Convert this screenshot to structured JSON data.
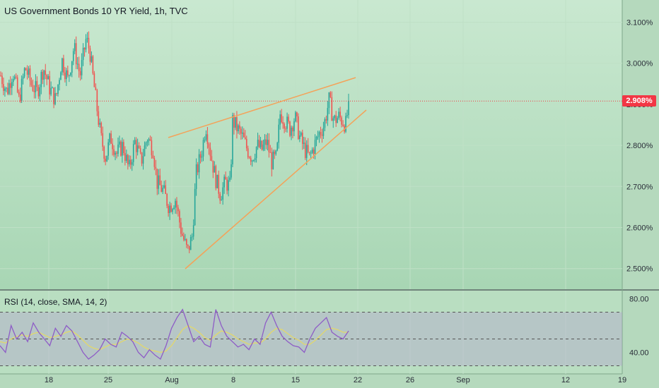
{
  "header": {
    "title": "US Government Bonds 10 YR Yield, 1h, TVC"
  },
  "rsi_header": {
    "title": "RSI (14, close, SMA, 14, 2)"
  },
  "price_tag": {
    "value": "2.908%",
    "color": "#f23645"
  },
  "colors": {
    "background_top": "#c9e8d0",
    "background_bottom": "#a8d6b4",
    "candle_up": "#26a69a",
    "candle_down": "#ef5350",
    "trendline": "#f4a259",
    "rsi_line": "#8e5cc6",
    "rsi_sma": "#e3d86a",
    "rsi_band": "#b29ad1"
  },
  "chart_data": [
    {
      "type": "candlestick",
      "title": "US Government Bonds 10 YR Yield, 1h, TVC",
      "y_unit": "%",
      "ylim": [
        2.46,
        3.13
      ],
      "y_ticks": [
        {
          "value": 3.1,
          "label": "3.100%"
        },
        {
          "value": 3.0,
          "label": "3.000%"
        },
        {
          "value": 2.9,
          "label": "2.900%"
        },
        {
          "value": 2.8,
          "label": "2.800%"
        },
        {
          "value": 2.7,
          "label": "2.700%"
        },
        {
          "value": 2.6,
          "label": "2.600%"
        },
        {
          "value": 2.5,
          "label": "2.500%"
        }
      ],
      "x_ticks": [
        "18",
        "25",
        "Aug",
        "8",
        "15",
        "22",
        "26",
        "Sep",
        "12",
        "19"
      ],
      "last_price": 2.908,
      "grid": true,
      "approx_path": [
        [
          0,
          2.97
        ],
        [
          5,
          2.93
        ],
        [
          10,
          2.98
        ],
        [
          15,
          2.91
        ],
        [
          20,
          2.99
        ],
        [
          25,
          2.95
        ],
        [
          30,
          2.93
        ],
        [
          35,
          2.99
        ],
        [
          40,
          2.94
        ],
        [
          45,
          2.91
        ],
        [
          50,
          3.01
        ],
        [
          55,
          2.96
        ],
        [
          60,
          3.04
        ],
        [
          65,
          2.97
        ],
        [
          70,
          3.06
        ],
        [
          73,
          3.03
        ],
        [
          75,
          2.98
        ],
        [
          78,
          2.91
        ],
        [
          82,
          2.82
        ],
        [
          86,
          2.77
        ],
        [
          90,
          2.82
        ],
        [
          95,
          2.78
        ],
        [
          100,
          2.8
        ],
        [
          105,
          2.74
        ],
        [
          110,
          2.81
        ],
        [
          115,
          2.76
        ],
        [
          120,
          2.82
        ],
        [
          125,
          2.79
        ],
        [
          128,
          2.71
        ],
        [
          133,
          2.69
        ],
        [
          138,
          2.65
        ],
        [
          143,
          2.67
        ],
        [
          148,
          2.59
        ],
        [
          153,
          2.54
        ],
        [
          157,
          2.58
        ],
        [
          160,
          2.73
        ],
        [
          165,
          2.79
        ],
        [
          168,
          2.85
        ],
        [
          172,
          2.78
        ],
        [
          176,
          2.72
        ],
        [
          180,
          2.68
        ],
        [
          184,
          2.71
        ],
        [
          188,
          2.7
        ],
        [
          190,
          2.86
        ],
        [
          194,
          2.84
        ],
        [
          198,
          2.82
        ],
        [
          202,
          2.79
        ],
        [
          206,
          2.77
        ],
        [
          210,
          2.8
        ],
        [
          214,
          2.79
        ],
        [
          218,
          2.81
        ],
        [
          222,
          2.76
        ],
        [
          226,
          2.77
        ],
        [
          229,
          2.88
        ],
        [
          233,
          2.86
        ],
        [
          237,
          2.84
        ],
        [
          241,
          2.87
        ],
        [
          245,
          2.82
        ],
        [
          249,
          2.79
        ],
        [
          253,
          2.77
        ],
        [
          257,
          2.8
        ],
        [
          261,
          2.83
        ],
        [
          265,
          2.85
        ],
        [
          269,
          2.91
        ],
        [
          273,
          2.86
        ],
        [
          277,
          2.87
        ],
        [
          280,
          2.86
        ],
        [
          283,
          2.85
        ],
        [
          285,
          2.908
        ]
      ]
    },
    {
      "type": "line",
      "title": "RSI (14, close, SMA, 14, 2)",
      "ylim": [
        25,
        85
      ],
      "y_ticks": [
        {
          "value": 80,
          "label": "80.00"
        },
        {
          "value": 40,
          "label": "40.00"
        }
      ],
      "levels": [
        70,
        50,
        30
      ],
      "series": [
        {
          "values": [
            45,
            40,
            60,
            50,
            55,
            48,
            62,
            55,
            50,
            45,
            58,
            52,
            60,
            56,
            48,
            40,
            35,
            38,
            42,
            50,
            46,
            44,
            55,
            52,
            48,
            40,
            36,
            42,
            38,
            35,
            45,
            58,
            66,
            72,
            60,
            48,
            52,
            46,
            44,
            72,
            60,
            52,
            48,
            44,
            46,
            42,
            50,
            46,
            62,
            70,
            60,
            52,
            48,
            45,
            44,
            40,
            50,
            58,
            62,
            66,
            55,
            52,
            50,
            56
          ]
        },
        {
          "values": [
            48,
            47,
            50,
            52,
            53,
            52,
            54,
            55,
            53,
            51,
            52,
            53,
            55,
            56,
            53,
            49,
            45,
            43,
            42,
            44,
            46,
            46,
            48,
            50,
            49,
            47,
            44,
            42,
            41,
            40,
            41,
            45,
            51,
            57,
            60,
            58,
            55,
            51,
            49,
            53,
            56,
            55,
            53,
            50,
            48,
            46,
            47,
            47,
            50,
            55,
            58,
            57,
            54,
            51,
            49,
            46,
            46,
            49,
            53,
            57,
            58,
            57,
            55,
            55
          ]
        }
      ]
    }
  ]
}
